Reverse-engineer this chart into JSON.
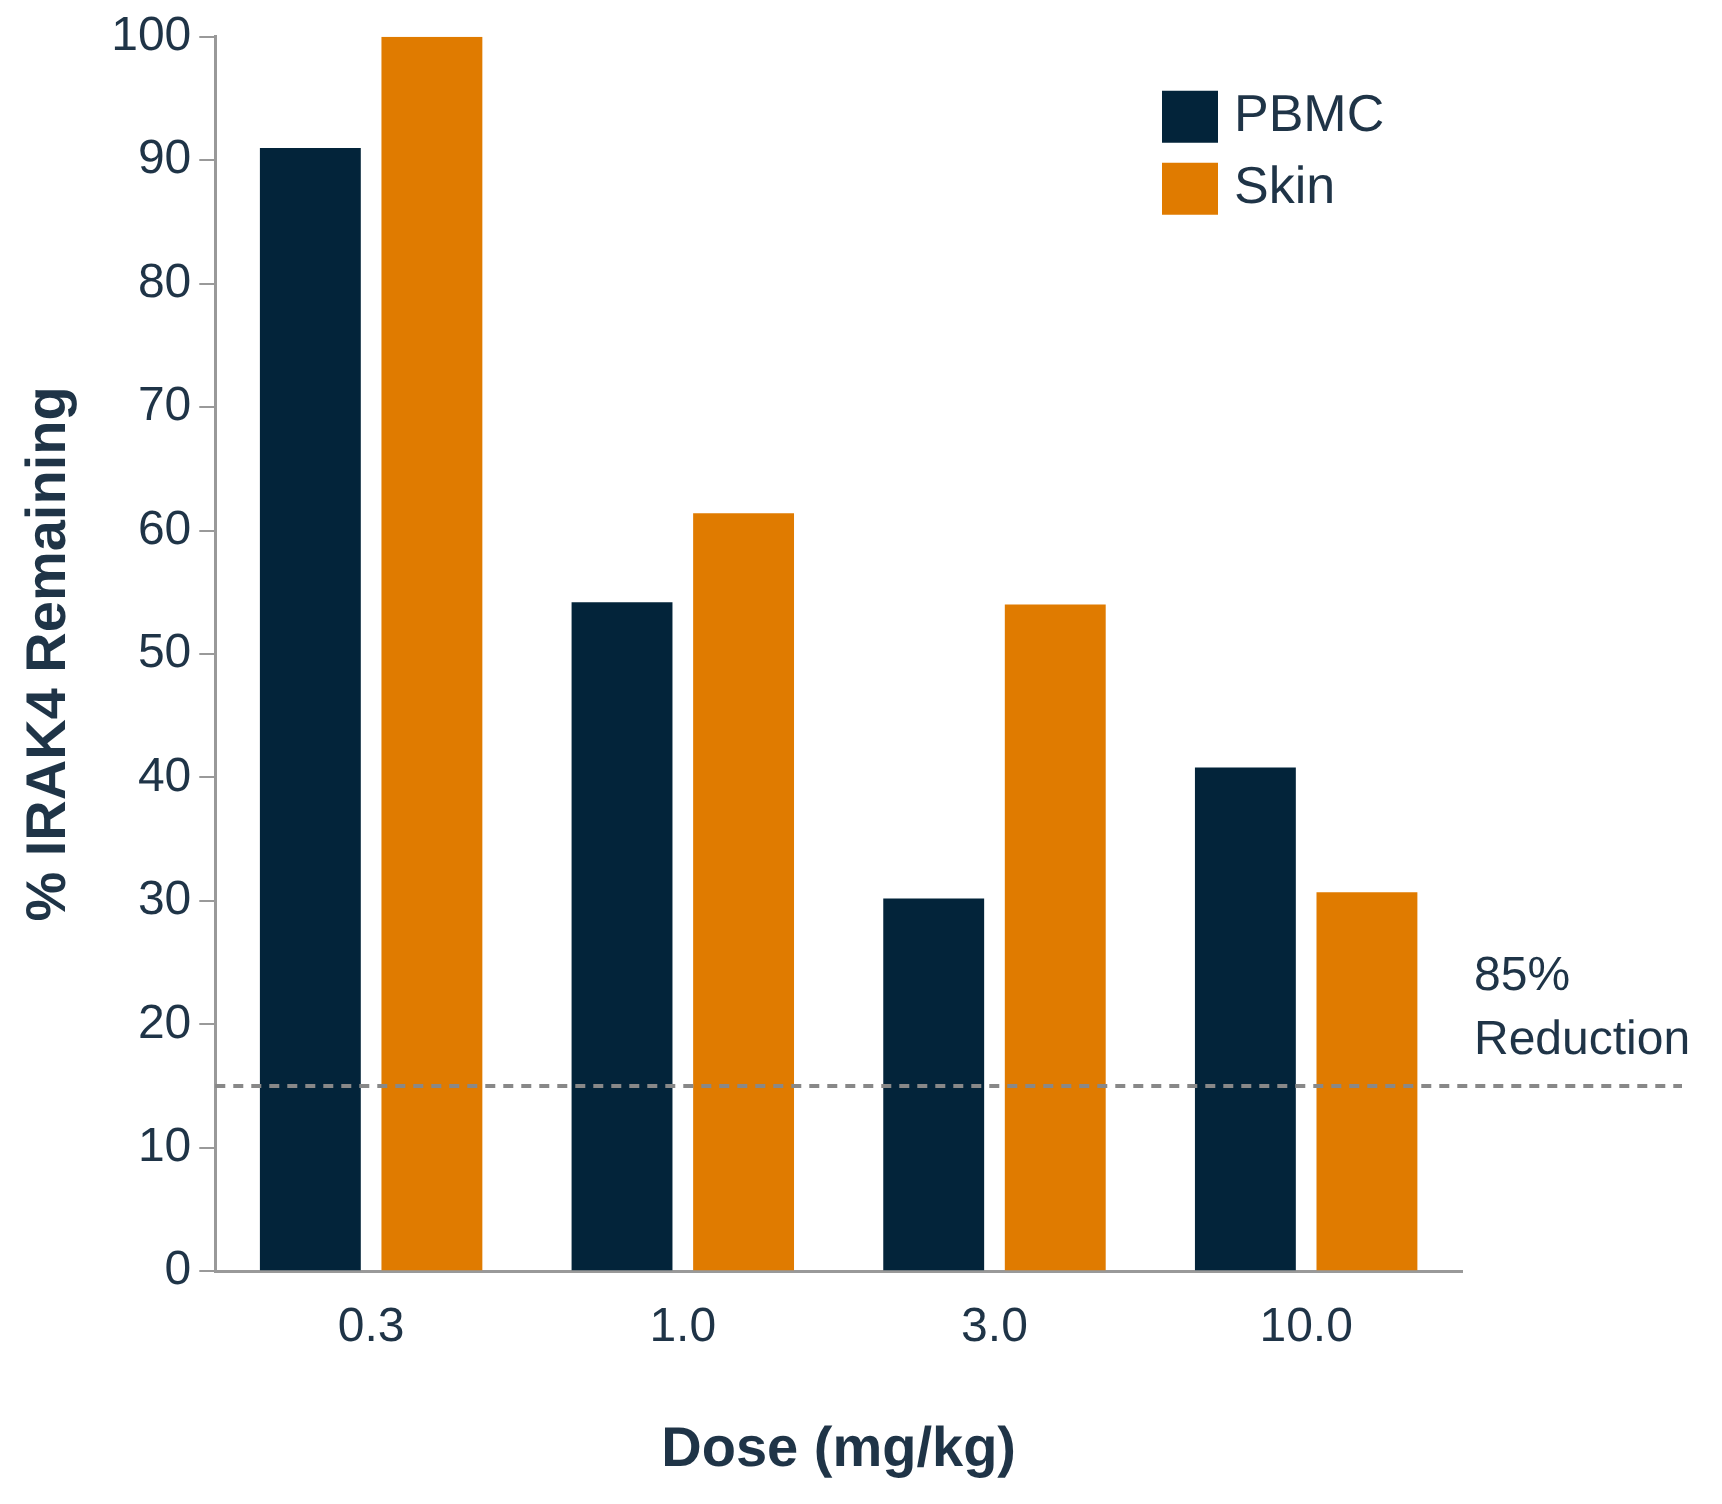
{
  "chart_data": {
    "type": "bar",
    "xlabel": "Dose (mg/kg)",
    "ylabel": "% IRAK4 Remaining",
    "categories": [
      "0.3",
      "1.0",
      "3.0",
      "10.0"
    ],
    "series": [
      {
        "name": "PBMC",
        "color": "#03243a",
        "values": [
          91,
          54.2,
          30.2,
          40.8
        ]
      },
      {
        "name": "Skin",
        "color": "#e07b00",
        "values": [
          100,
          61.4,
          54,
          30.7
        ]
      }
    ],
    "ylim": [
      0,
      100
    ],
    "yticks": [
      0,
      10,
      20,
      30,
      40,
      50,
      60,
      70,
      80,
      90,
      100
    ],
    "grid": false,
    "legend": "top right",
    "ref_lines": [
      {
        "axis": "y",
        "value": 15,
        "label": "85%\nReduction",
        "color": "#888888",
        "line_style": "dashed"
      }
    ]
  }
}
